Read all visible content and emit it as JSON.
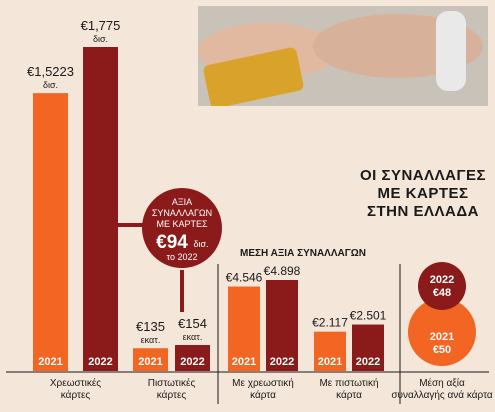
{
  "colors": {
    "background": "#f4e6d9",
    "year_2021": "#f26522",
    "year_2022": "#8b1a1a",
    "text": "#1a1a1a",
    "white": "#ffffff"
  },
  "chart_data": [
    {
      "type": "bar",
      "title": "",
      "categories": [
        "Χρεωστικές κάρτες",
        "Πιστωτικές κάρτες"
      ],
      "series": [
        {
          "name": "2021",
          "values": [
            1.5223,
            0.135
          ],
          "labels": [
            "€1,5223 δισ.",
            "€135 εκατ."
          ]
        },
        {
          "name": "2022",
          "values": [
            1.775,
            0.154
          ],
          "labels": [
            "€1,775 δισ.",
            "€154 εκατ."
          ]
        }
      ]
    },
    {
      "type": "bar",
      "title": "ΜΕΣΗ ΑΞΙΑ ΣΥΝΑΛΛΑΓΩΝ",
      "categories": [
        "Με χρεωστική κάρτα",
        "Με πιστωτική κάρτα"
      ],
      "series": [
        {
          "name": "2021",
          "values": [
            4.546,
            2.117
          ],
          "labels": [
            "€4.546",
            "€2.117"
          ]
        },
        {
          "name": "2022",
          "values": [
            4.898,
            2.501
          ],
          "labels": [
            "€4.898",
            "€2.501"
          ]
        }
      ]
    },
    {
      "type": "bubble",
      "category": "Μέση αξία συναλλαγής ανά κάρτα",
      "series": [
        {
          "name": "2022",
          "values": [
            48
          ],
          "labels": [
            "€48"
          ]
        },
        {
          "name": "2021",
          "values": [
            50
          ],
          "labels": [
            "€50"
          ]
        }
      ]
    }
  ],
  "headline": [
    "ΟΙ ΣΥΝΑΛΛΑΓΕΣ",
    "ΜΕ ΚΑΡΤΕΣ",
    "ΣΤΗΝ ΕΛΛΑΔΑ"
  ],
  "callout": {
    "lines": [
      "ΑΞΙΑ",
      "ΣΥΝΑΛΛΑΓΩΝ",
      "ΜΕ ΚΑΡΤΕΣ"
    ],
    "value": "€94",
    "unit": "δισ.",
    "year": "το 2022"
  }
}
